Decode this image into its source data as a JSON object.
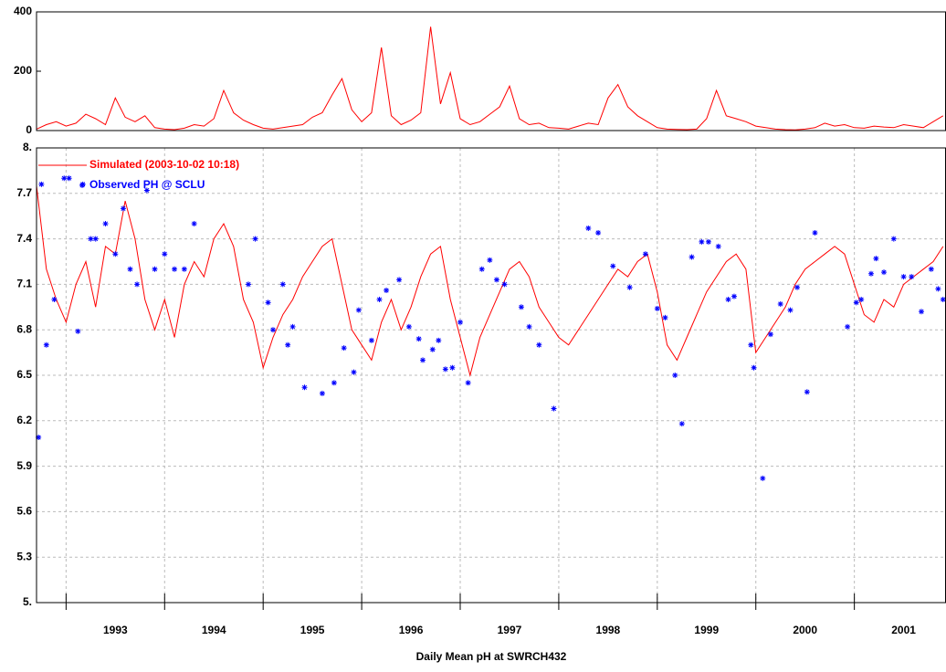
{
  "chart_data": [
    {
      "type": "line",
      "color": "#ff0000",
      "xlim": [
        1992.7,
        2001.93
      ],
      "ylim": [
        0,
        400
      ],
      "yticks": [
        0,
        200,
        400
      ],
      "x": [
        1992.7,
        1992.8,
        1992.9,
        1993.0,
        1993.1,
        1993.2,
        1993.3,
        1993.4,
        1993.5,
        1993.6,
        1993.7,
        1993.8,
        1993.9,
        1994.0,
        1994.1,
        1994.2,
        1994.3,
        1994.4,
        1994.5,
        1994.6,
        1994.7,
        1994.8,
        1994.9,
        1995.0,
        1995.1,
        1995.2,
        1995.3,
        1995.4,
        1995.5,
        1995.6,
        1995.7,
        1995.8,
        1995.9,
        1996.0,
        1996.1,
        1996.2,
        1996.3,
        1996.4,
        1996.5,
        1996.6,
        1996.7,
        1996.8,
        1996.9,
        1997.0,
        1997.1,
        1997.2,
        1997.3,
        1997.4,
        1997.5,
        1997.6,
        1997.7,
        1997.8,
        1997.9,
        1998.0,
        1998.1,
        1998.2,
        1998.3,
        1998.4,
        1998.5,
        1998.6,
        1998.7,
        1998.8,
        1998.9,
        1999.0,
        1999.1,
        1999.2,
        1999.3,
        1999.4,
        1999.5,
        1999.6,
        1999.7,
        1999.8,
        1999.9,
        2000.0,
        2000.1,
        2000.2,
        2000.3,
        2000.4,
        2000.5,
        2000.6,
        2000.7,
        2000.8,
        2000.9,
        2001.0,
        2001.1,
        2001.2,
        2001.3,
        2001.4,
        2001.5,
        2001.6,
        2001.7,
        2001.8,
        2001.9
      ],
      "values": [
        5,
        20,
        30,
        15,
        25,
        55,
        40,
        20,
        110,
        45,
        30,
        50,
        10,
        5,
        3,
        8,
        20,
        15,
        40,
        135,
        60,
        35,
        20,
        8,
        5,
        10,
        15,
        20,
        45,
        60,
        120,
        175,
        70,
        30,
        60,
        280,
        50,
        20,
        35,
        60,
        350,
        90,
        195,
        40,
        20,
        30,
        55,
        80,
        150,
        40,
        20,
        25,
        10,
        8,
        5,
        15,
        25,
        20,
        110,
        155,
        80,
        50,
        30,
        10,
        5,
        4,
        3,
        5,
        40,
        135,
        50,
        40,
        30,
        15,
        10,
        5,
        3,
        2,
        5,
        10,
        25,
        15,
        20,
        10,
        8,
        15,
        12,
        10,
        20,
        15,
        10,
        30,
        50
      ]
    },
    {
      "type": "line",
      "xlabel": "Daily Mean pH at SWRCH432",
      "xlim": [
        1992.7,
        2001.93
      ],
      "ylim": [
        5,
        8
      ],
      "grid": true,
      "legend": "upper left",
      "xticks": [
        1993,
        1994,
        1995,
        1996,
        1997,
        1998,
        1999,
        2000,
        2001
      ],
      "yticks": [
        {
          "value": 5,
          "label": "5."
        },
        5.3,
        5.6,
        5.9,
        6.2,
        6.5,
        6.8,
        7.1,
        7.4,
        7.7,
        {
          "value": 8,
          "label": "8."
        }
      ],
      "series": [
        {
          "name": "Simulated (2003-10-02 10:18)",
          "color": "#ff0000",
          "type": "line",
          "x": [
            1992.7,
            1992.8,
            1992.9,
            1993.0,
            1993.1,
            1993.2,
            1993.3,
            1993.4,
            1993.5,
            1993.6,
            1993.7,
            1993.8,
            1993.9,
            1994.0,
            1994.1,
            1994.2,
            1994.3,
            1994.4,
            1994.5,
            1994.6,
            1994.7,
            1994.8,
            1994.9,
            1995.0,
            1995.1,
            1995.2,
            1995.3,
            1995.4,
            1995.5,
            1995.6,
            1995.7,
            1995.8,
            1995.9,
            1996.0,
            1996.1,
            1996.2,
            1996.3,
            1996.4,
            1996.5,
            1996.6,
            1996.7,
            1996.8,
            1996.9,
            1997.0,
            1997.1,
            1997.2,
            1997.3,
            1997.4,
            1997.5,
            1997.6,
            1997.7,
            1997.8,
            1997.9,
            1998.0,
            1998.1,
            1998.2,
            1998.3,
            1998.4,
            1998.5,
            1998.6,
            1998.7,
            1998.8,
            1998.9,
            1999.0,
            1999.1,
            1999.2,
            1999.3,
            1999.4,
            1999.5,
            1999.6,
            1999.7,
            1999.8,
            1999.9,
            2000.0,
            2000.1,
            2000.2,
            2000.3,
            2000.4,
            2000.5,
            2000.6,
            2000.7,
            2000.8,
            2000.9,
            2001.0,
            2001.1,
            2001.2,
            2001.3,
            2001.4,
            2001.5,
            2001.6,
            2001.7,
            2001.8,
            2001.9
          ],
          "values": [
            7.75,
            7.2,
            7.0,
            6.85,
            7.1,
            7.25,
            6.95,
            7.35,
            7.3,
            7.65,
            7.4,
            7.0,
            6.8,
            7.0,
            6.75,
            7.1,
            7.25,
            7.15,
            7.4,
            7.5,
            7.35,
            7.0,
            6.85,
            6.55,
            6.75,
            6.9,
            7.0,
            7.15,
            7.25,
            7.35,
            7.4,
            7.1,
            6.8,
            6.7,
            6.6,
            6.85,
            7.0,
            6.8,
            6.95,
            7.15,
            7.3,
            7.35,
            7.0,
            6.75,
            6.5,
            6.75,
            6.9,
            7.05,
            7.2,
            7.25,
            7.15,
            6.95,
            6.85,
            6.75,
            6.7,
            6.8,
            6.9,
            7.0,
            7.1,
            7.2,
            7.15,
            7.25,
            7.3,
            7.05,
            6.7,
            6.6,
            6.75,
            6.9,
            7.05,
            7.15,
            7.25,
            7.3,
            7.2,
            6.65,
            6.75,
            6.85,
            6.95,
            7.1,
            7.2,
            7.25,
            7.3,
            7.35,
            7.3,
            7.1,
            6.9,
            6.85,
            7.0,
            6.95,
            7.1,
            7.15,
            7.2,
            7.25,
            7.35
          ]
        },
        {
          "name": "Observed PH @ SCLU",
          "color": "#0000ff",
          "type": "scatter",
          "x": [
            1992.72,
            1992.75,
            1992.8,
            1992.88,
            1992.98,
            1993.03,
            1993.12,
            1993.17,
            1993.25,
            1993.3,
            1993.4,
            1993.5,
            1993.58,
            1993.65,
            1993.72,
            1993.82,
            1993.9,
            1994.0,
            1994.1,
            1994.2,
            1994.3,
            1994.85,
            1994.92,
            1995.05,
            1995.1,
            1995.2,
            1995.25,
            1995.3,
            1995.42,
            1995.6,
            1995.72,
            1995.82,
            1995.92,
            1995.97,
            1996.1,
            1996.18,
            1996.25,
            1996.38,
            1996.48,
            1996.58,
            1996.62,
            1996.72,
            1996.78,
            1996.85,
            1996.92,
            1997.0,
            1997.08,
            1997.22,
            1997.3,
            1997.37,
            1997.45,
            1997.62,
            1997.7,
            1997.8,
            1997.95,
            1998.3,
            1998.4,
            1998.55,
            1998.72,
            1998.88,
            1999.0,
            1999.08,
            1999.18,
            1999.25,
            1999.35,
            1999.45,
            1999.52,
            1999.62,
            1999.72,
            1999.78,
            1999.95,
            1999.98,
            2000.07,
            2000.15,
            2000.25,
            2000.35,
            2000.42,
            2000.52,
            2000.6,
            2000.93,
            2001.02,
            2001.07,
            2001.17,
            2001.22,
            2001.3,
            2001.4,
            2001.5,
            2001.58,
            2001.68,
            2001.78,
            2001.85,
            2001.9
          ],
          "values": [
            6.09,
            7.76,
            6.7,
            7.0,
            7.8,
            7.8,
            6.79,
            7.76,
            7.4,
            7.4,
            7.5,
            7.3,
            7.6,
            7.2,
            7.1,
            7.72,
            7.2,
            7.3,
            7.2,
            7.2,
            7.5,
            7.1,
            7.4,
            6.98,
            6.8,
            7.1,
            6.7,
            6.82,
            6.42,
            6.38,
            6.45,
            6.68,
            6.52,
            6.93,
            6.73,
            7.0,
            7.06,
            7.13,
            6.82,
            6.74,
            6.6,
            6.67,
            6.73,
            6.54,
            6.55,
            6.85,
            6.45,
            7.2,
            7.26,
            7.13,
            7.1,
            6.95,
            6.82,
            6.7,
            6.28,
            7.47,
            7.44,
            7.22,
            7.08,
            7.3,
            6.94,
            6.88,
            6.5,
            6.18,
            7.28,
            7.38,
            7.38,
            7.35,
            7.0,
            7.02,
            6.7,
            6.55,
            5.82,
            6.77,
            6.97,
            6.93,
            7.08,
            6.39,
            7.44,
            6.82,
            6.98,
            7.0,
            7.17,
            7.27,
            7.18,
            7.4,
            7.15,
            7.15,
            6.92,
            7.2,
            7.07,
            7.0
          ]
        }
      ]
    }
  ]
}
